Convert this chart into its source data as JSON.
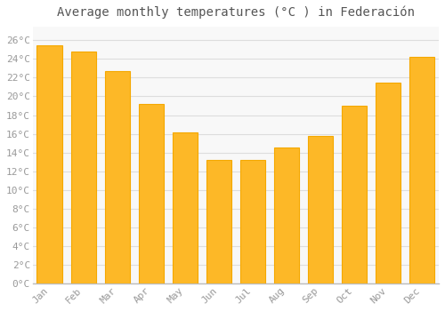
{
  "months": [
    "Jan",
    "Feb",
    "Mar",
    "Apr",
    "May",
    "Jun",
    "Jul",
    "Aug",
    "Sep",
    "Oct",
    "Nov",
    "Dec"
  ],
  "values": [
    25.5,
    24.8,
    22.7,
    19.2,
    16.1,
    13.2,
    13.2,
    14.5,
    15.8,
    19.0,
    21.5,
    24.2
  ],
  "bar_color": "#FDB827",
  "bar_edge_color": "#F5A800",
  "title": "Average monthly temperatures (°C ) in Federación",
  "title_fontsize": 10,
  "ylabel_ticks": [
    0,
    2,
    4,
    6,
    8,
    10,
    12,
    14,
    16,
    18,
    20,
    22,
    24,
    26
  ],
  "ylim": [
    0,
    27.5
  ],
  "background_color": "#FFFFFF",
  "plot_bg_color": "#F8F8F8",
  "grid_color": "#DDDDDD",
  "tick_label_color": "#999999",
  "title_color": "#555555",
  "font_family": "monospace",
  "bar_width": 0.75
}
